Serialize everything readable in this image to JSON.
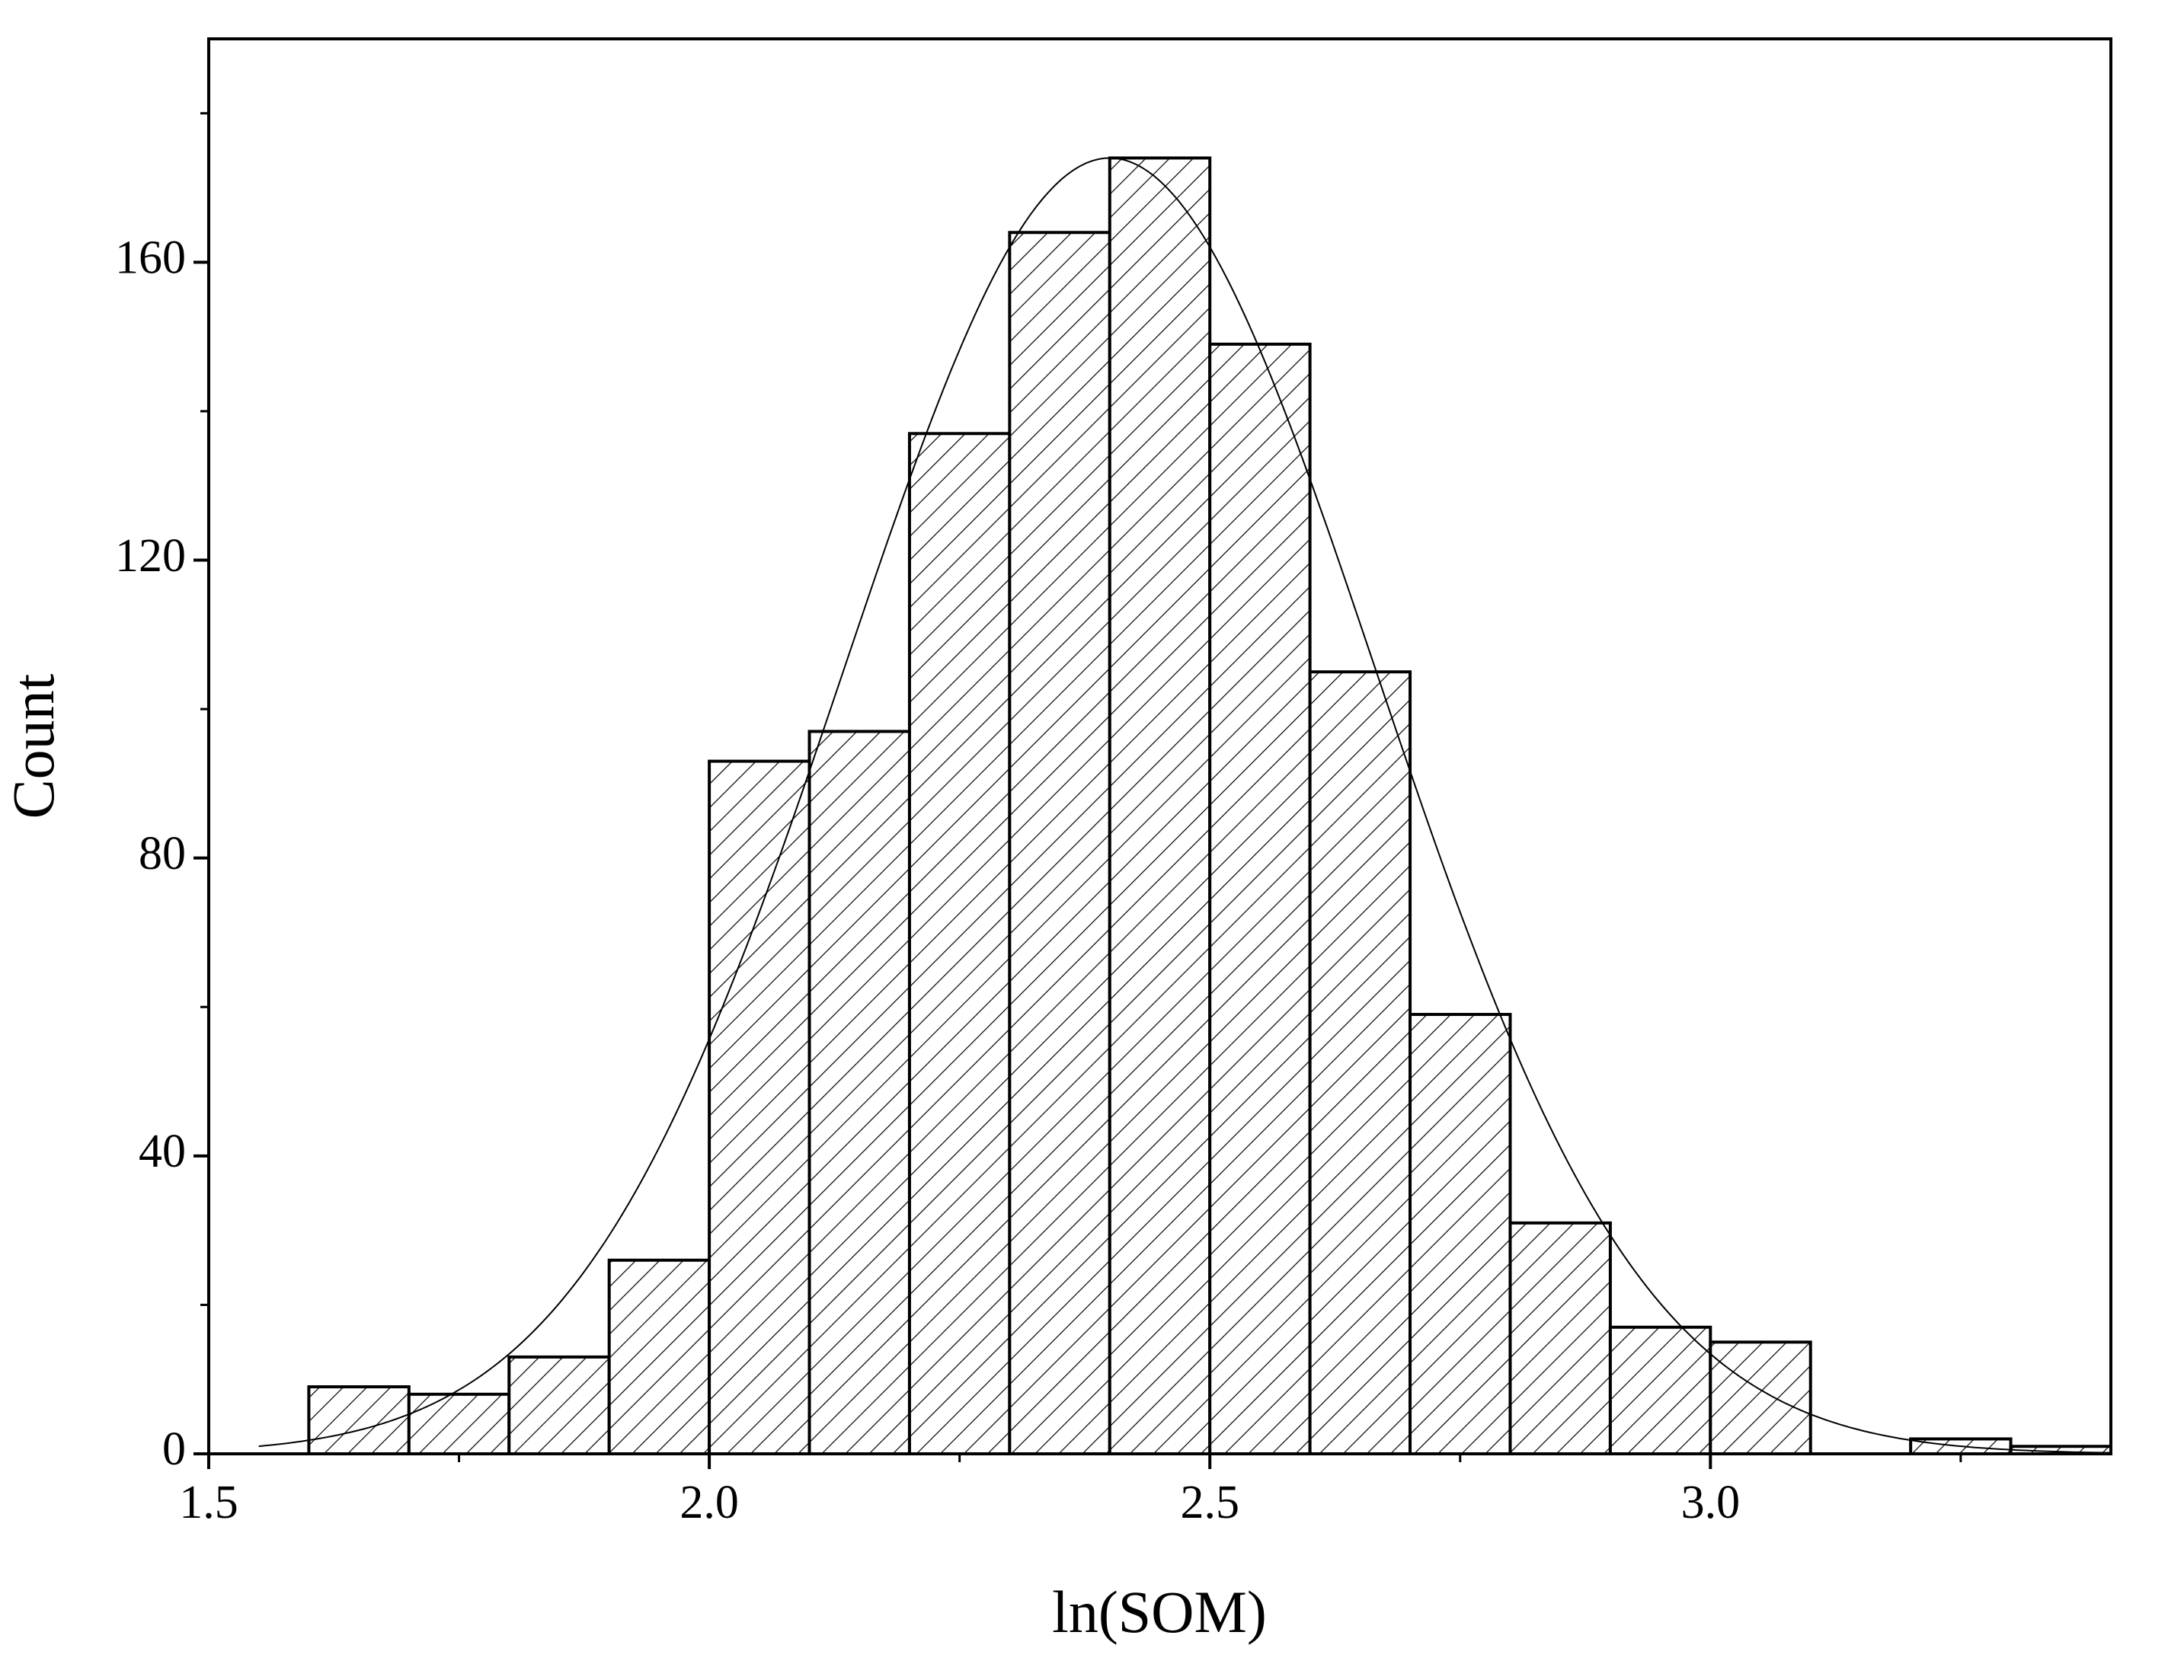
{
  "chart_data": {
    "type": "histogram",
    "xlabel": "ln(SOM)",
    "ylabel": "Count",
    "bins": [
      1.6,
      1.7,
      1.8,
      1.9,
      2.0,
      2.1,
      2.2,
      2.3,
      2.4,
      2.5,
      2.6,
      2.7,
      2.8,
      2.9,
      3.0,
      3.1,
      3.2,
      3.3,
      3.4
    ],
    "values": [
      9,
      8,
      13,
      26,
      93,
      97,
      137,
      164,
      174,
      149,
      105,
      59,
      31,
      17,
      15,
      0,
      2,
      1
    ],
    "color": "#000000",
    "hatch": true,
    "fit_curve": {
      "mean": 2.4,
      "sd": 0.265,
      "peak": 174,
      "xrange": [
        1.55,
        3.4
      ]
    },
    "xlim": [
      1.5,
      3.4
    ],
    "xticks": [
      {
        "value": 1.5,
        "label": "1.5"
      },
      {
        "value": 2.0,
        "label": "2.0"
      },
      {
        "value": 2.5,
        "label": "2.5"
      },
      {
        "value": 3.0,
        "label": "3.0"
      }
    ],
    "xminorticks": [
      1.75,
      2.25,
      2.75,
      3.25
    ],
    "ylim": [
      0,
      190
    ],
    "yticks": [
      0,
      40,
      80,
      120,
      160
    ],
    "yminorticks": [
      20,
      60,
      100,
      140,
      180
    ],
    "grid": false
  }
}
